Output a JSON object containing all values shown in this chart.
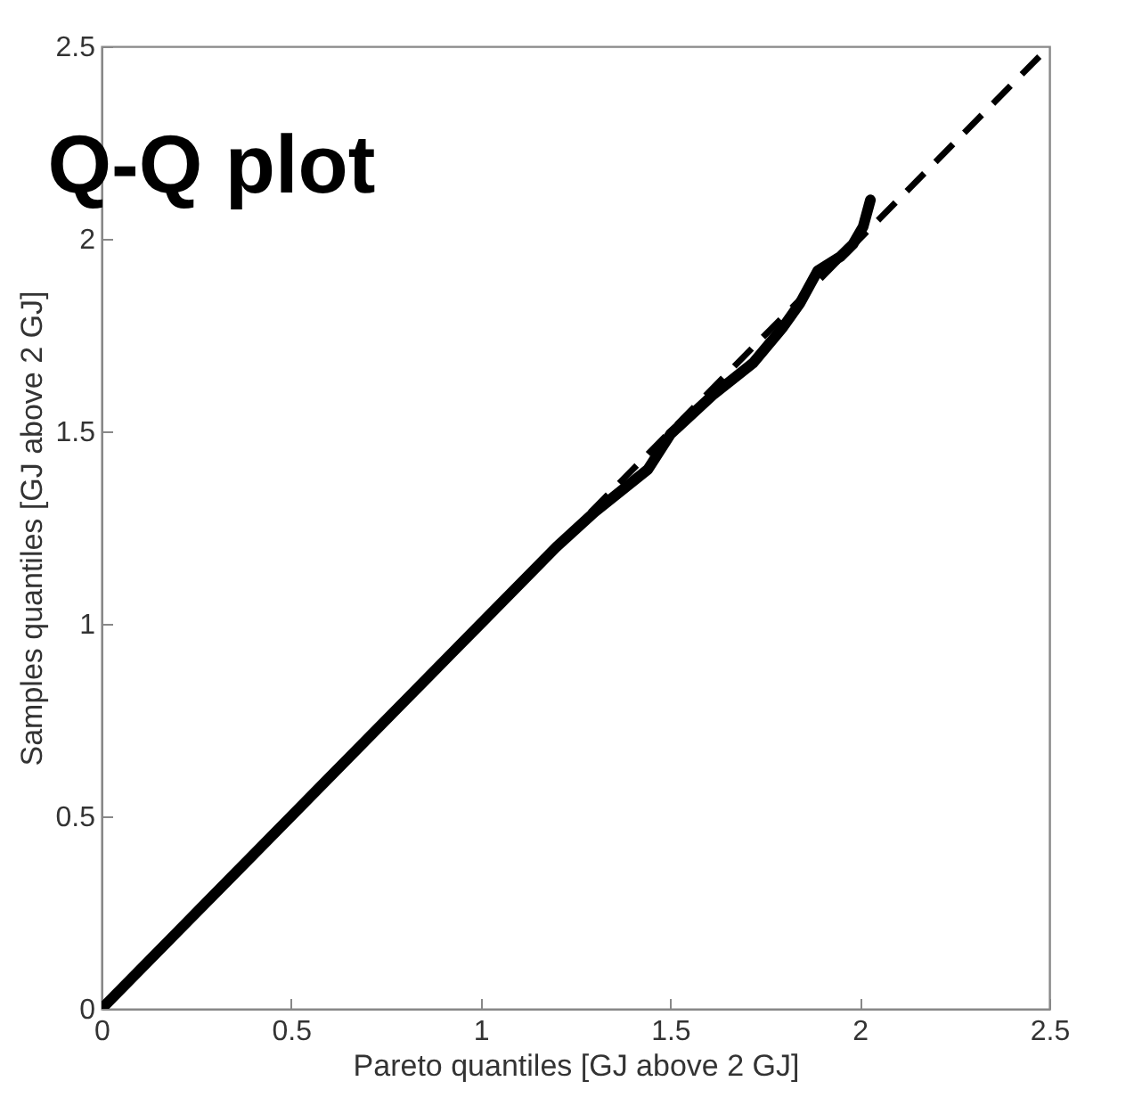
{
  "chart_data": {
    "type": "line",
    "title": "Q-Q plot",
    "xlabel": "Pareto quantiles [GJ above 2 GJ]",
    "ylabel": "Samples quantiles [GJ above 2 GJ]",
    "xlim": [
      0,
      2.5
    ],
    "ylim": [
      0,
      2.5
    ],
    "xticks": [
      0,
      0.5,
      1,
      1.5,
      2,
      2.5
    ],
    "yticks": [
      0,
      0.5,
      1,
      1.5,
      2,
      2.5
    ],
    "grid": false,
    "series": [
      {
        "color": "#000000",
        "line_style": "solid",
        "marker": "none",
        "x": [
          0,
          0.2,
          0.4,
          0.6,
          0.8,
          1.0,
          1.2,
          1.3,
          1.441,
          1.501,
          1.612,
          1.718,
          1.797,
          1.843,
          1.889,
          1.949,
          1.982,
          2.009,
          2.028
        ],
        "values": [
          0,
          0.2,
          0.4,
          0.6,
          0.8,
          1.0,
          1.2,
          1.29,
          1.401,
          1.493,
          1.594,
          1.677,
          1.77,
          1.834,
          1.917,
          1.954,
          1.986,
          2.032,
          2.101
        ]
      },
      {
        "color": "#000000",
        "line_style": "dashed",
        "marker": "none",
        "x": [
          0,
          2.5
        ],
        "values": [
          0,
          2.5
        ]
      }
    ]
  }
}
